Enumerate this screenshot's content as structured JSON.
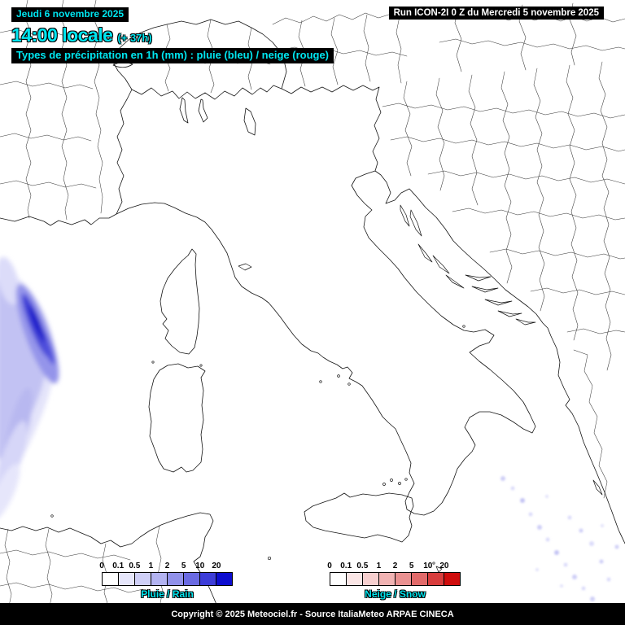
{
  "header": {
    "date_line": "Jeudi 6 novembre 2025",
    "time_line": "14:00 locale",
    "offset_label": "(+ 37h)",
    "subtitle": "Types de précipitation en 1h (mm) : pluie (bleu) / neige (rouge)",
    "run_info": "Run ICON-2I 0 Z du Mercredi 5 novembre 2025"
  },
  "legend": {
    "ticks": [
      "0",
      "0.1",
      "0.5",
      "1",
      "2",
      "5",
      "10",
      "20"
    ],
    "rain_label": "Pluie / Rain",
    "snow_label": "Neige / Snow",
    "rain_colors": [
      "#ffffff",
      "#e6e6fb",
      "#cfcff7",
      "#b3b3f1",
      "#9191ea",
      "#6a6ae2",
      "#3d3dd8",
      "#0d0dcf"
    ],
    "snow_colors": [
      "#ffffff",
      "#fbe6e6",
      "#f7cfcf",
      "#f1b3b3",
      "#ea9191",
      "#e26a6a",
      "#d83d3d",
      "#cf0d0d"
    ]
  },
  "footer": {
    "copyright": "Copyright © 2025 Meteociel.fr - Source ItaliaMeteo ARPAE CINECA"
  },
  "colors": {
    "accent": "#00e6f0",
    "run_text": "#ffffff",
    "strip_background": "#000000"
  }
}
